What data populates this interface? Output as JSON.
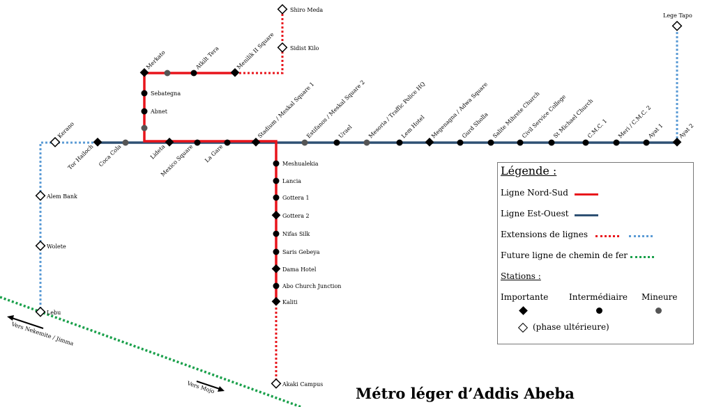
{
  "title": "Métro léger d’Addis Abeba",
  "colors": {
    "nord_sud": "#e8141b",
    "est_ouest": "#2e5073",
    "extension_ns": "#e8141b",
    "extension_eo": "#5b9bd5",
    "rail": "#1aa04b",
    "minor": "#555555"
  },
  "stations": {
    "shiro_meda": "Shiro Meda",
    "sidist_kilo": "Sidist Kilo",
    "menilik": "Menilik II Square",
    "atkilt_tera": "Atkilt Tera",
    "merkato": "Merkato",
    "sebategna": "Sebategna",
    "abnet": "Abnet",
    "lideta": "Lideta",
    "mexico": "Mexico Square",
    "la_gare": "La Gare",
    "stadium": "Stadium / Meskal Square 1",
    "estifanos": "Estifanos / Meskal Square 2",
    "urael": "Urael",
    "mesoria": "Mesoria / Traffic Police HQ",
    "lem_hotel": "Lem Hotel",
    "megenagna": "Megenagna / Adwa Square",
    "gurd_sholla": "Gurd Sholla",
    "salite": "Salite Mihrete Church",
    "civil_service": "Civil Service College",
    "st_michael": "St Michael Church",
    "cmc1": "C.M.C. 1",
    "meri": "Meri / C.M.C. 2",
    "ayat1": "Ayat 1",
    "ayat2": "Ayat 2",
    "lege_tapo": "Lege Tapo",
    "kerano": "Kerano",
    "tor_hailoch": "Tor Hailoch",
    "coca_cola": "Coca Cola",
    "alem_bank": "Alem Bank",
    "wolete": "Wolete",
    "lebu": "Lebu",
    "meshualekia": "Meshualekia",
    "lancia": "Lancia",
    "gottera1": "Gottera 1",
    "gottera2": "Gottera 2",
    "nifas_silk": "Nifas Silk",
    "saris": "Saris Gebeya",
    "dama": "Dama Hotel",
    "abo": "Abo Church Junction",
    "kaliti": "Kaliti",
    "akaki": "Akaki Campus"
  },
  "directions": {
    "nekemte": "Vers Nekemite / Jimma",
    "mojo": "Vers Mojo"
  },
  "legend": {
    "heading": "Légende :",
    "nord_sud": "Ligne Nord-Sud",
    "est_ouest": "Ligne Est-Ouest",
    "extensions": "Extensions de lignes",
    "railway": "Future ligne de chemin de fer",
    "stations_heading": "Stations :",
    "importante": "Importante",
    "intermediaire": "Intermédiaire",
    "mineure": "Mineure",
    "phase": "(phase ultérieure)"
  }
}
